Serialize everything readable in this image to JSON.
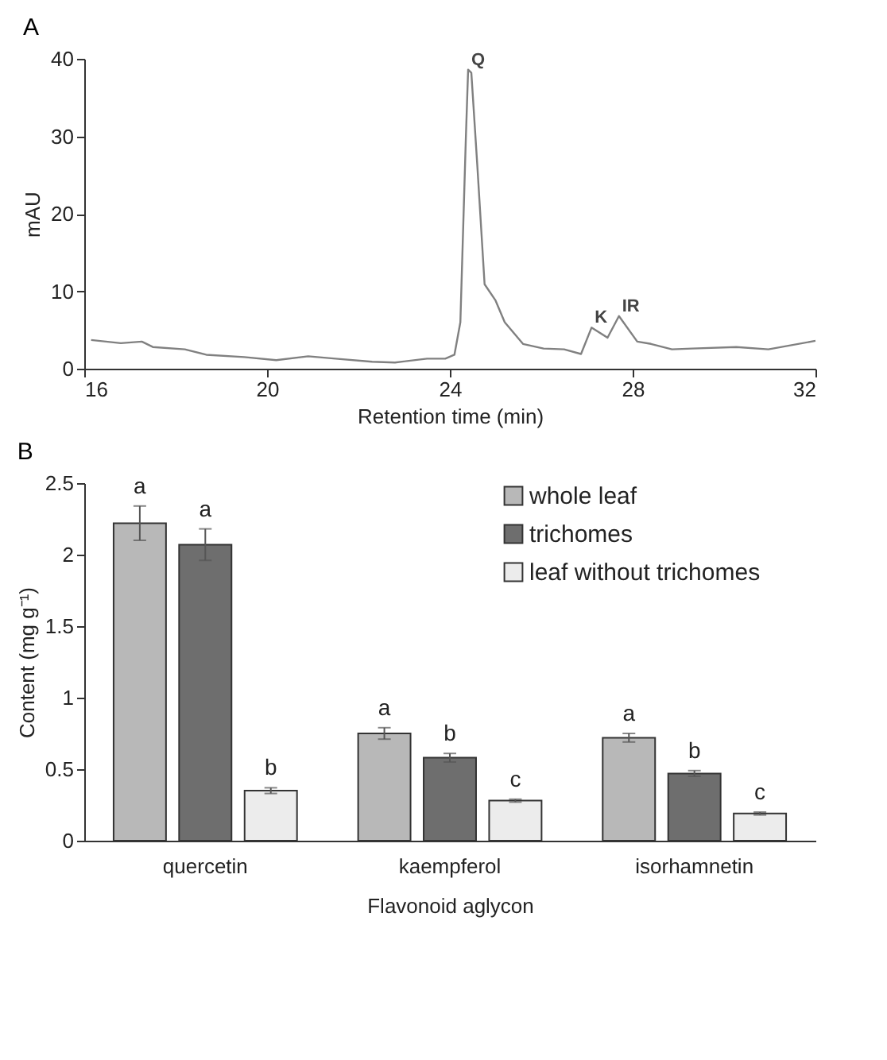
{
  "chart_data": [
    {
      "type": "line",
      "title": "A",
      "xlabel": "Retention time (min)",
      "ylabel": "mAU",
      "x": [
        16.15,
        16.8,
        17.26,
        17.5,
        18.2,
        18.67,
        19.5,
        20.2,
        20.9,
        21.5,
        22.3,
        22.8,
        23.5,
        23.9,
        24.1,
        24.23,
        24.35,
        24.4,
        24.47,
        24.6,
        24.76,
        25.0,
        25.2,
        25.6,
        26.05,
        26.5,
        26.87,
        27.1,
        27.45,
        27.7,
        28.1,
        28.4,
        28.86,
        29.3,
        30.27,
        30.97,
        32
      ],
      "series": [
        {
          "color": "#808080",
          "values": [
            3.7,
            3.3,
            3.5,
            2.8,
            2.5,
            1.8,
            1.5,
            1.1,
            1.6,
            1.3,
            0.9,
            0.8,
            1.3,
            1.3,
            1.8,
            6,
            29.8,
            38.6,
            38.2,
            26.3,
            10.9,
            8.8,
            6,
            3.2,
            2.6,
            2.5,
            1.9,
            5.3,
            4.0,
            6.8,
            3.5,
            3.2,
            2.5,
            2.6,
            2.8,
            2.5,
            3.6
          ]
        }
      ],
      "xlim": [
        16,
        32
      ],
      "xticks": [
        16,
        20,
        24,
        28,
        32
      ],
      "ylim": [
        0,
        40
      ],
      "yticks": [
        0,
        10,
        20,
        30,
        40
      ],
      "annotations": [
        {
          "text": "Q",
          "x": 24.4,
          "y": 38.6
        },
        {
          "text": "K",
          "x": 27.1,
          "y": 5.3
        },
        {
          "text": "IR",
          "x": 27.7,
          "y": 6.8
        }
      ],
      "grid": false,
      "marker": "none",
      "line_style": "solid"
    },
    {
      "type": "bar",
      "title": "B",
      "xlabel": "Flavonoid aglycon",
      "ylabel": "Content (mg g⁻¹)",
      "categories": [
        "quercetin",
        "kaempferol",
        "isorhamnetin"
      ],
      "series": [
        {
          "name": "whole leaf",
          "color": "#b8b8b8",
          "values": [
            2.22,
            0.75,
            0.72
          ],
          "errors": [
            0.12,
            0.04,
            0.03
          ],
          "value_labels": [
            "a",
            "a",
            "a"
          ]
        },
        {
          "name": "trichomes",
          "color": "#6e6e6e",
          "values": [
            2.07,
            0.58,
            0.47
          ],
          "errors": [
            0.11,
            0.03,
            0.02
          ],
          "value_labels": [
            "a",
            "b",
            "b"
          ]
        },
        {
          "name": "leaf without trichomes",
          "color": "#ececec",
          "values": [
            0.35,
            0.28,
            0.19
          ],
          "errors": [
            0.02,
            0.01,
            0.01
          ],
          "value_labels": [
            "b",
            "c",
            "c"
          ]
        }
      ],
      "ylim": [
        0,
        2.5
      ],
      "yticks": [
        0,
        0.5,
        1,
        1.5,
        2,
        2.5
      ],
      "grid": false,
      "legend": "top right"
    }
  ]
}
